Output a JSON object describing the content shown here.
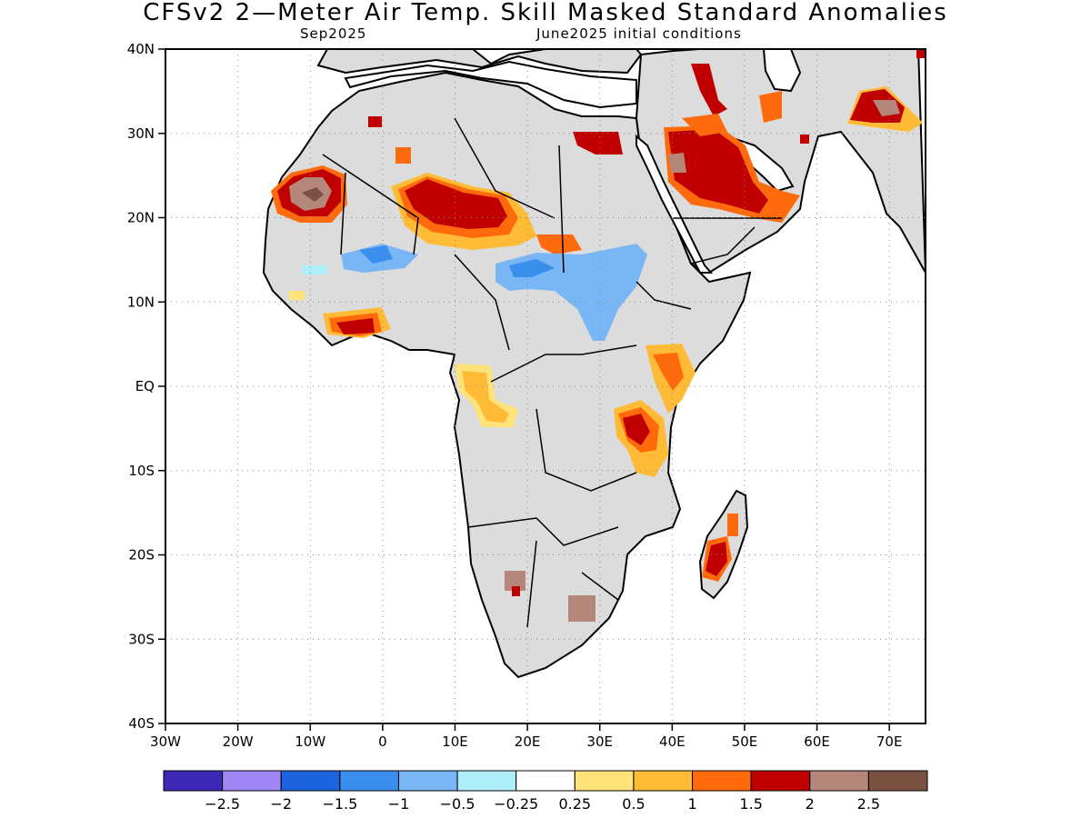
{
  "title": "CFSv2 2—Meter Air Temp. Skill Masked Standard Anomalies",
  "subtitle_left": "Sep2025",
  "subtitle_right": "June2025 initial conditions",
  "map": {
    "region": "Africa",
    "lon_range": [
      -30,
      75
    ],
    "lat_range": [
      -40,
      40
    ],
    "grid": true,
    "land_fill": "#dcdcdc",
    "ocean_fill": "#ffffff",
    "y_ticks": [
      "40N",
      "30N",
      "20N",
      "10N",
      "EQ",
      "10S",
      "20S",
      "30S",
      "40S"
    ],
    "x_ticks": [
      "30W",
      "20W",
      "10W",
      "0",
      "10E",
      "20E",
      "30E",
      "40E",
      "50E",
      "60E",
      "70E"
    ]
  },
  "colorbar": {
    "colors": [
      "#3d28b5",
      "#9f87f5",
      "#1e64df",
      "#3a8fee",
      "#78b6f5",
      "#aeeef9",
      "#ffffff",
      "#ffe27a",
      "#ffbb36",
      "#ff6a0c",
      "#c00000",
      "#b5877a",
      "#7a5040"
    ],
    "labels": [
      "−2.5",
      "−2",
      "−1.5",
      "−1",
      "−0.5",
      "−0.25",
      "0.25",
      "0.5",
      "1",
      "1.5",
      "2",
      "2.5"
    ]
  }
}
